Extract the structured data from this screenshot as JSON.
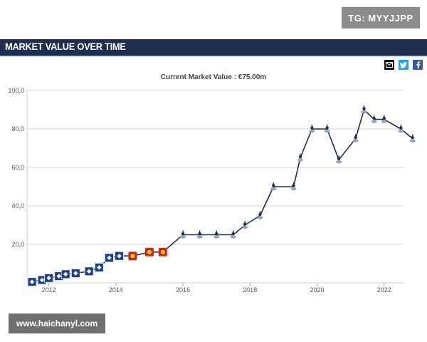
{
  "watermark_top": "TG: MYYJJPP",
  "header": {
    "title": "MARKET VALUE OVER TIME"
  },
  "share": {
    "email_icon": "email-icon",
    "twitter_icon": "twitter-icon",
    "facebook_icon": "facebook-icon"
  },
  "watermark_bottom": "www.haichanyl.com",
  "chart_data": {
    "type": "line",
    "title": "Current Market Value : €75.00m",
    "xlabel": "",
    "ylabel": "",
    "x_ticks": [
      "2012",
      "2014",
      "2016",
      "2018",
      "2020",
      "2022"
    ],
    "y_ticks": [
      "20,0",
      "40,0",
      "60,0",
      "80,0",
      "100,0"
    ],
    "ylim": [
      0,
      100
    ],
    "xlim": [
      2011.35,
      2022.6
    ],
    "grid": true,
    "line_color": "#1d2e4f",
    "club_colors": {
      "hsv": "#1b3f8f",
      "leverkusen": "#e2211c",
      "tottenham": "#1d2e4f"
    },
    "points": [
      {
        "x": 2011.5,
        "y": 0.5,
        "club": "hsv"
      },
      {
        "x": 2011.8,
        "y": 1.5,
        "club": "hsv"
      },
      {
        "x": 2012.0,
        "y": 2.5,
        "club": "hsv"
      },
      {
        "x": 2012.3,
        "y": 3.5,
        "club": "hsv"
      },
      {
        "x": 2012.5,
        "y": 4.5,
        "club": "hsv"
      },
      {
        "x": 2012.8,
        "y": 5.0,
        "club": "hsv"
      },
      {
        "x": 2013.2,
        "y": 6.0,
        "club": "hsv"
      },
      {
        "x": 2013.5,
        "y": 8.0,
        "club": "hsv"
      },
      {
        "x": 2013.8,
        "y": 13.0,
        "club": "hsv"
      },
      {
        "x": 2014.1,
        "y": 14.0,
        "club": "hsv"
      },
      {
        "x": 2014.5,
        "y": 14.0,
        "club": "leverkusen"
      },
      {
        "x": 2015.0,
        "y": 16.0,
        "club": "leverkusen"
      },
      {
        "x": 2015.4,
        "y": 16.0,
        "club": "leverkusen"
      },
      {
        "x": 2016.0,
        "y": 25.0,
        "club": "tottenham"
      },
      {
        "x": 2016.5,
        "y": 25.0,
        "club": "tottenham"
      },
      {
        "x": 2017.0,
        "y": 25.0,
        "club": "tottenham"
      },
      {
        "x": 2017.5,
        "y": 25.0,
        "club": "tottenham"
      },
      {
        "x": 2017.85,
        "y": 30.0,
        "club": "tottenham"
      },
      {
        "x": 2018.3,
        "y": 35.0,
        "club": "tottenham"
      },
      {
        "x": 2018.7,
        "y": 50.0,
        "club": "tottenham"
      },
      {
        "x": 2019.3,
        "y": 50.0,
        "club": "tottenham"
      },
      {
        "x": 2019.5,
        "y": 65.0,
        "club": "tottenham"
      },
      {
        "x": 2019.85,
        "y": 80.0,
        "club": "tottenham"
      },
      {
        "x": 2020.3,
        "y": 80.0,
        "club": "tottenham"
      },
      {
        "x": 2020.65,
        "y": 64.0,
        "club": "tottenham"
      },
      {
        "x": 2021.15,
        "y": 75.0,
        "club": "tottenham"
      },
      {
        "x": 2021.4,
        "y": 90.0,
        "club": "tottenham"
      },
      {
        "x": 2021.7,
        "y": 85.0,
        "club": "tottenham"
      },
      {
        "x": 2022.0,
        "y": 85.0,
        "club": "tottenham"
      },
      {
        "x": 2022.5,
        "y": 80.0,
        "club": "tottenham"
      },
      {
        "x": 2022.85,
        "y": 75.0,
        "club": "tottenham"
      }
    ]
  }
}
